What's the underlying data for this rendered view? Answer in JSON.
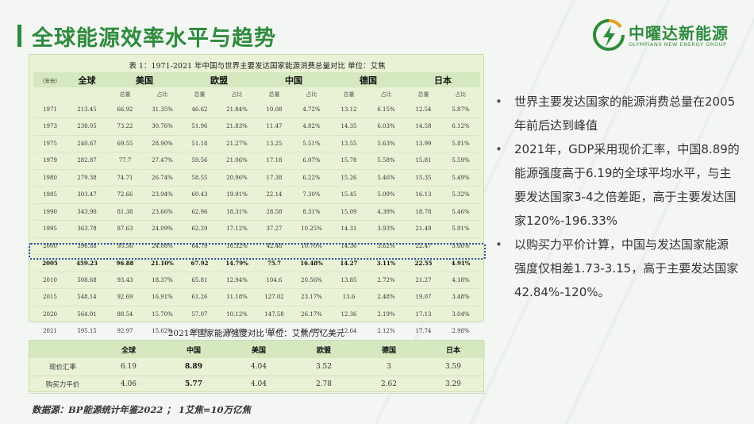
{
  "page": {
    "title": "全球能源效率水平与趋势",
    "logo": {
      "name": "中曜达新能源",
      "subtitle": "OLYMPIANS NEW ENERGY GROUP"
    }
  },
  "table1": {
    "caption": "表 1：1971-2021 年中国与世界主要发达国家能源消费总量对比  单位：艾焦",
    "year_header": "（年份）",
    "countries": [
      "全球",
      "美国",
      "欧盟",
      "中国",
      "德国",
      "日本"
    ],
    "sub_headers": [
      "总量",
      "占比"
    ],
    "rows": [
      [
        "1971",
        "213.45",
        "66.92",
        "31.35%",
        "46.62",
        "21.84%",
        "10.08",
        "4.72%",
        "13.12",
        "6.15%",
        "12.54",
        "5.87%"
      ],
      [
        "1973",
        "238.05",
        "73.22",
        "30.76%",
        "51.96",
        "21.83%",
        "11.47",
        "4.82%",
        "14.35",
        "6.03%",
        "14.58",
        "6.12%"
      ],
      [
        "1975",
        "240.67",
        "69.55",
        "28.90%",
        "51.18",
        "21.27%",
        "13.25",
        "5.51%",
        "13.55",
        "5.63%",
        "13.99",
        "5.81%"
      ],
      [
        "1979",
        "282.87",
        "77.7",
        "27.47%",
        "59.56",
        "21.06%",
        "17.18",
        "6.07%",
        "15.78",
        "5.58%",
        "15.81",
        "5.59%"
      ],
      [
        "1980",
        "279.38",
        "74.71",
        "26.74%",
        "58.55",
        "20.96%",
        "17.38",
        "6.22%",
        "15.26",
        "5.46%",
        "15.35",
        "5.49%"
      ],
      [
        "1985",
        "303.47",
        "72.66",
        "23.94%",
        "60.43",
        "19.91%",
        "22.14",
        "7.30%",
        "15.45",
        "5.09%",
        "16.13",
        "5.32%"
      ],
      [
        "1990",
        "343.90",
        "81.38",
        "23.66%",
        "62.96",
        "18.31%",
        "28.58",
        "8.31%",
        "15.09",
        "4.39%",
        "18.78",
        "5.46%"
      ],
      [
        "1995",
        "363.78",
        "87.63",
        "24.09%",
        "62.29",
        "17.12%",
        "37.27",
        "10.25%",
        "14.31",
        "3.93%",
        "21.49",
        "5.91%"
      ],
      [
        "2000",
        "396.88",
        "95.56",
        "24.08%",
        "64.79",
        "16.32%",
        "42.48",
        "10.70%",
        "14.36",
        "3.62%",
        "22.47",
        "5.66%"
      ],
      [
        "2005",
        "459.23",
        "96.88",
        "21.10%",
        "67.92",
        "14.79%",
        "75.7",
        "16.48%",
        "14.27",
        "3.11%",
        "22.55",
        "4.91%"
      ],
      [
        "2010",
        "508.68",
        "93.43",
        "18.37%",
        "65.81",
        "12.94%",
        "104.6",
        "20.56%",
        "13.85",
        "2.72%",
        "21.27",
        "4.18%"
      ],
      [
        "2015",
        "548.14",
        "92.69",
        "16.91%",
        "61.26",
        "11.18%",
        "127.02",
        "23.17%",
        "13.6",
        "2.48%",
        "19.07",
        "3.48%"
      ],
      [
        "2020",
        "564.01",
        "88.54",
        "15.70%",
        "57.07",
        "10.12%",
        "147.58",
        "26.17%",
        "12.36",
        "2.19%",
        "17.13",
        "3.04%"
      ],
      [
        "2021",
        "595.15",
        "92.97",
        "15.62%",
        "60.11",
        "10.10%",
        "157.65",
        "26.49%",
        "12.64",
        "2.12%",
        "17.74",
        "2.98%"
      ]
    ],
    "highlight_year": "2005"
  },
  "table2": {
    "caption": "2021年国家能源强度对比  单位：艾焦/万亿美元",
    "headers": [
      "",
      "全球",
      "中国",
      "美国",
      "欧盟",
      "德国",
      "日本"
    ],
    "rows": [
      [
        "现价汇率",
        "6.19",
        "8.89",
        "4.04",
        "3.52",
        "3",
        "3.59"
      ],
      [
        "购买力平价",
        "4.06",
        "5.77",
        "4.04",
        "2.78",
        "2.62",
        "3.29"
      ]
    ]
  },
  "source_note": "数据源：BP能源统计年鉴2022 ；  1艾焦=10万亿焦",
  "bullets": [
    "世界主要发达国家的能源消费总量在2005年前后达到峰值",
    "2021年，GDP采用现价汇率，中国8.89的能源强度高于6.19的全球平均水平，与主要发达国家3-4之倍差距，高于主要发达国家120%-196.33%",
    "以购买力平价计算，中国与发达国家能源强度仅相差1.73-3.15，高于主要发达国家42.84%-120%。"
  ],
  "colors": {
    "accent": "#2e8b3d",
    "table_bg": "#e8f3d6",
    "highlight_border": "#2b4a9c"
  }
}
